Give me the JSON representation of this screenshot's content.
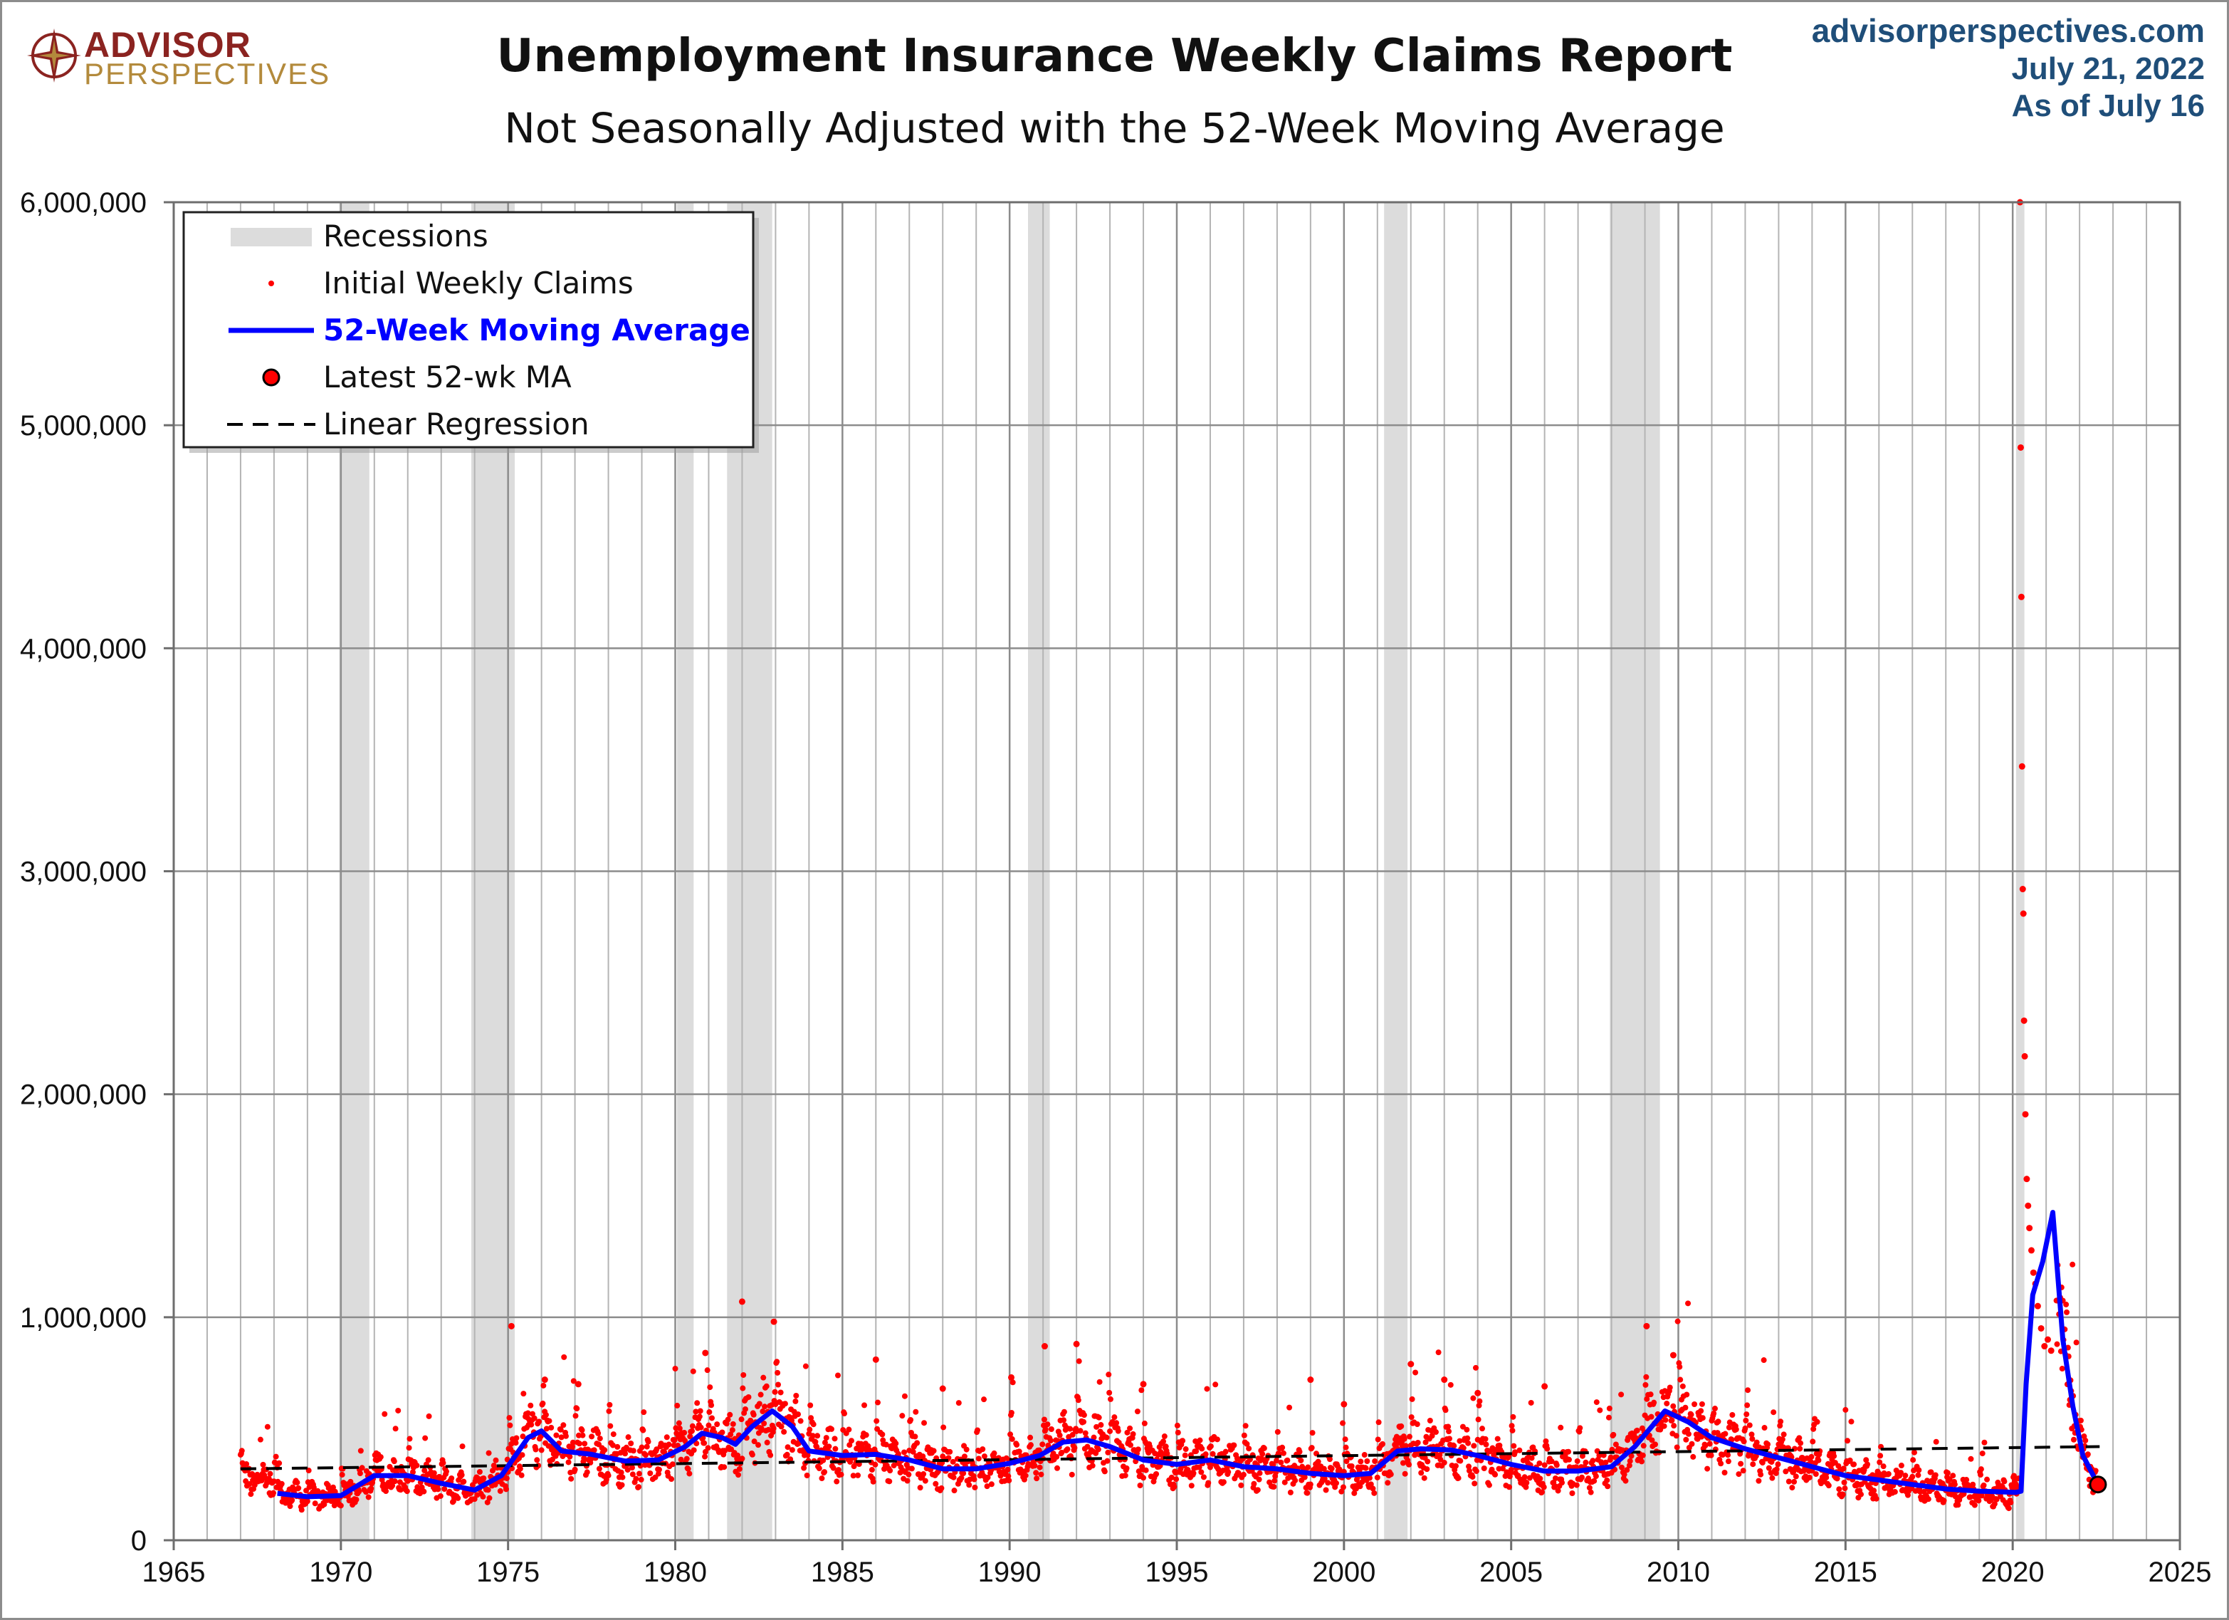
{
  "header": {
    "title": "Unemployment Insurance Weekly Claims Report",
    "subtitle": "Not Seasonally Adjusted with the 52-Week Moving Average",
    "site": "advisorperspectives.com",
    "date": "July 21, 2022",
    "as_of": "As of July 16",
    "logo_line1": "ADVISOR",
    "logo_line2": "PERSPECTIVES"
  },
  "colors": {
    "claims": "#ff0000",
    "moving_average": "#0000ff",
    "recession": "#dcdcdc",
    "regression": "#000000",
    "title_blue": "#1f4e79"
  },
  "chart_data": {
    "type": "scatter",
    "title": "Unemployment Insurance Weekly Claims Report",
    "subtitle": "Not Seasonally Adjusted with the 52-Week Moving Average",
    "xlim": [
      1965,
      2025
    ],
    "ylim": [
      0,
      6000000
    ],
    "x_ticks": [
      1965,
      1970,
      1975,
      1980,
      1985,
      1990,
      1995,
      2000,
      2005,
      2010,
      2015,
      2020,
      2025
    ],
    "y_ticks": [
      0,
      1000000,
      2000000,
      3000000,
      4000000,
      5000000,
      6000000
    ],
    "x_tick_labels": [
      "1965",
      "1970",
      "1975",
      "1980",
      "1985",
      "1990",
      "1995",
      "2000",
      "2005",
      "2010",
      "2015",
      "2020",
      "2025"
    ],
    "y_tick_labels": [
      "0",
      "1,000,000",
      "2,000,000",
      "3,000,000",
      "4,000,000",
      "5,000,000",
      "6,000,000"
    ],
    "grid": true,
    "legend_position": "top-left",
    "legend": [
      "Recessions",
      "Initial Weekly Claims",
      "52-Week Moving Average",
      "Latest 52-wk MA",
      "Linear Regression"
    ],
    "recessions": [
      [
        1969.95,
        1970.85
      ],
      [
        1973.9,
        1975.2
      ],
      [
        1980.05,
        1980.55
      ],
      [
        1981.55,
        1982.9
      ],
      [
        1990.55,
        1991.2
      ],
      [
        2001.2,
        2001.9
      ],
      [
        2007.95,
        2009.45
      ],
      [
        2020.1,
        2020.35
      ]
    ],
    "moving_average": [
      [
        1968.1,
        210000
      ],
      [
        1969.0,
        195000
      ],
      [
        1970.0,
        200000
      ],
      [
        1971.0,
        290000
      ],
      [
        1972.0,
        290000
      ],
      [
        1973.0,
        255000
      ],
      [
        1974.0,
        225000
      ],
      [
        1974.8,
        290000
      ],
      [
        1975.6,
        460000
      ],
      [
        1976.0,
        490000
      ],
      [
        1976.6,
        400000
      ],
      [
        1977.5,
        385000
      ],
      [
        1978.5,
        355000
      ],
      [
        1979.5,
        360000
      ],
      [
        1980.3,
        420000
      ],
      [
        1980.8,
        480000
      ],
      [
        1981.4,
        460000
      ],
      [
        1981.8,
        430000
      ],
      [
        1982.3,
        510000
      ],
      [
        1982.9,
        580000
      ],
      [
        1983.5,
        510000
      ],
      [
        1984.0,
        400000
      ],
      [
        1985.0,
        380000
      ],
      [
        1986.0,
        385000
      ],
      [
        1987.0,
        360000
      ],
      [
        1988.0,
        320000
      ],
      [
        1989.0,
        320000
      ],
      [
        1990.0,
        345000
      ],
      [
        1990.9,
        380000
      ],
      [
        1991.6,
        440000
      ],
      [
        1992.3,
        450000
      ],
      [
        1993.0,
        420000
      ],
      [
        1994.0,
        360000
      ],
      [
        1995.0,
        340000
      ],
      [
        1996.0,
        360000
      ],
      [
        1997.0,
        330000
      ],
      [
        1998.0,
        320000
      ],
      [
        1999.0,
        300000
      ],
      [
        2000.0,
        290000
      ],
      [
        2000.8,
        300000
      ],
      [
        2001.6,
        400000
      ],
      [
        2002.3,
        410000
      ],
      [
        2003.2,
        405000
      ],
      [
        2004.0,
        380000
      ],
      [
        2005.0,
        340000
      ],
      [
        2006.0,
        310000
      ],
      [
        2007.0,
        310000
      ],
      [
        2008.0,
        330000
      ],
      [
        2008.7,
        420000
      ],
      [
        2009.6,
        580000
      ],
      [
        2010.3,
        530000
      ],
      [
        2011.0,
        460000
      ],
      [
        2012.0,
        410000
      ],
      [
        2013.0,
        370000
      ],
      [
        2014.0,
        330000
      ],
      [
        2015.0,
        290000
      ],
      [
        2016.0,
        270000
      ],
      [
        2017.0,
        250000
      ],
      [
        2018.0,
        230000
      ],
      [
        2019.0,
        220000
      ],
      [
        2020.1,
        215000
      ],
      [
        2020.25,
        220000
      ],
      [
        2020.4,
        700000
      ],
      [
        2020.6,
        1100000
      ],
      [
        2020.9,
        1250000
      ],
      [
        2021.2,
        1470000
      ],
      [
        2021.5,
        900000
      ],
      [
        2021.8,
        600000
      ],
      [
        2022.1,
        380000
      ],
      [
        2022.55,
        250000
      ]
    ],
    "latest_ma": [
      2022.55,
      250000
    ],
    "regression": [
      [
        1967.0,
        320000
      ],
      [
        2022.6,
        420000
      ]
    ],
    "claims_outliers": [
      [
        2020.22,
        6000000
      ],
      [
        2020.24,
        4900000
      ],
      [
        2020.26,
        4230000
      ],
      [
        2020.28,
        3470000
      ],
      [
        2020.3,
        2920000
      ],
      [
        2020.32,
        2810000
      ],
      [
        2020.34,
        2330000
      ],
      [
        2020.36,
        2170000
      ],
      [
        2020.38,
        1910000
      ],
      [
        2020.42,
        1620000
      ],
      [
        2020.46,
        1500000
      ],
      [
        2020.5,
        1400000
      ],
      [
        2020.56,
        1300000
      ],
      [
        2020.62,
        1200000
      ],
      [
        2020.68,
        1150000
      ],
      [
        2020.75,
        1050000
      ],
      [
        2020.85,
        950000
      ],
      [
        2020.95,
        870000
      ],
      [
        2021.05,
        900000
      ],
      [
        2021.15,
        850000
      ],
      [
        1975.1,
        960000
      ],
      [
        1982.0,
        1070000
      ],
      [
        1982.95,
        980000
      ],
      [
        2009.05,
        960000
      ],
      [
        1986.0,
        810000
      ],
      [
        1992.0,
        880000
      ],
      [
        1991.05,
        870000
      ],
      [
        1980.9,
        840000
      ],
      [
        2009.85,
        830000
      ],
      [
        2002.0,
        790000
      ],
      [
        1976.1,
        720000
      ],
      [
        1977.1,
        700000
      ],
      [
        1990.05,
        730000
      ],
      [
        1999.0,
        720000
      ],
      [
        2000.0,
        610000
      ],
      [
        2006.0,
        690000
      ],
      [
        2004.0,
        660000
      ],
      [
        2003.0,
        720000
      ],
      [
        1994.0,
        700000
      ],
      [
        1988.0,
        680000
      ]
    ]
  }
}
